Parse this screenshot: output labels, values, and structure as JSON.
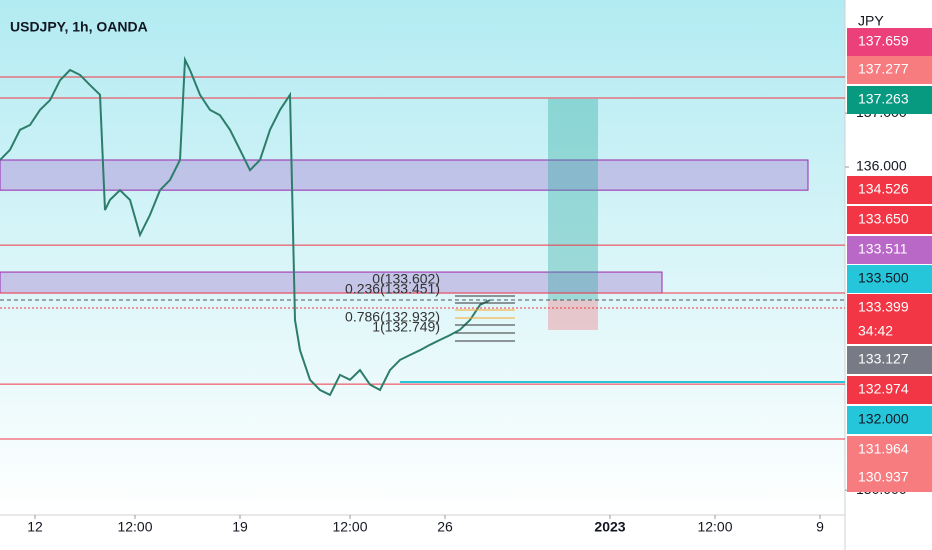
{
  "chart_data": {
    "type": "line",
    "title": "USDJPY, 1h, OANDA",
    "y_axis_label": "JPY",
    "color": "#2e7d6b",
    "x": [
      0,
      2,
      4,
      6,
      8,
      10,
      12,
      14,
      16,
      18,
      20,
      21,
      22,
      24,
      26,
      28,
      30,
      32,
      34,
      36,
      37,
      38,
      40,
      42,
      44,
      46,
      48,
      50,
      52,
      54,
      56,
      58,
      59,
      60,
      62,
      64,
      66,
      68,
      70,
      72,
      74,
      76,
      78,
      80,
      82,
      84,
      86,
      88,
      90,
      92,
      94,
      96,
      98
    ],
    "values": [
      136.13,
      136.32,
      136.69,
      136.78,
      137.06,
      137.24,
      137.61,
      137.8,
      137.71,
      137.52,
      137.34,
      135.2,
      135.39,
      135.57,
      135.39,
      134.74,
      135.11,
      135.57,
      135.76,
      136.13,
      137.99,
      137.8,
      137.34,
      137.06,
      136.96,
      136.69,
      136.32,
      135.94,
      136.13,
      136.69,
      137.06,
      137.34,
      133.16,
      132.6,
      132.05,
      131.86,
      131.77,
      132.14,
      132.05,
      132.23,
      131.96,
      131.86,
      132.23,
      132.42,
      132.51,
      132.6,
      132.7,
      132.79,
      132.88,
      132.98,
      133.16,
      133.44,
      133.53
    ],
    "xlim": [
      0,
      169
    ],
    "xticks": [
      {
        "value": 7,
        "label": "12"
      },
      {
        "value": 27,
        "label": "12:00"
      },
      {
        "value": 48,
        "label": "19"
      },
      {
        "value": 70,
        "label": "12:00"
      },
      {
        "value": 89,
        "label": "26"
      },
      {
        "value": 122,
        "label": "2023"
      },
      {
        "value": 143,
        "label": "12:00"
      },
      {
        "value": 164,
        "label": "9"
      }
    ],
    "ylim": [
      129.54,
      139.1
    ],
    "yticks": [
      {
        "value": 130,
        "label": "130.000"
      },
      {
        "value": 136,
        "label": "136.000"
      },
      {
        "value": 137,
        "label": "137.000"
      }
    ],
    "levels": [
      137.67,
      137.28,
      134.55,
      133.66,
      131.97,
      130.95
    ],
    "level_color": "#f23645",
    "zones": [
      {
        "range": [
          135.57,
          136.13
        ],
        "x_end": 161.6
      },
      {
        "range": [
          133.66,
          134.05
        ],
        "x_end": 132.4
      }
    ],
    "position": {
      "x": [
        109.6,
        119.6
      ],
      "target": 137.263,
      "entry": 133.53,
      "stop": 132.974
    },
    "fib_labels": [
      "0(133.602)",
      "0.236(133.451)",
      "0.786(132.932)",
      "1(132.749)"
    ],
    "price_labels": [
      {
        "label": "137.659",
        "color": "#ec407a"
      },
      {
        "label": "137.277",
        "color": "#f77c80"
      },
      {
        "label": "137.263",
        "color": "#089981"
      },
      {
        "label": "134.526",
        "color": "#f23645"
      },
      {
        "label": "133.650",
        "color": "#f23645"
      },
      {
        "label": "133.511",
        "color": "#ba68c8"
      },
      {
        "label": "133.500",
        "color": "#26c6da"
      },
      {
        "label": "133.399",
        "color": "#f23645"
      },
      {
        "label": "133.127",
        "color": "#787b86"
      },
      {
        "label": "132.974",
        "color": "#f23645"
      },
      {
        "label": "132.000",
        "color": "#26c6da"
      },
      {
        "label": "131.964",
        "color": "#f77c80"
      },
      {
        "label": "130.937",
        "color": "#f77c80"
      }
    ],
    "countdown": "34:42"
  }
}
